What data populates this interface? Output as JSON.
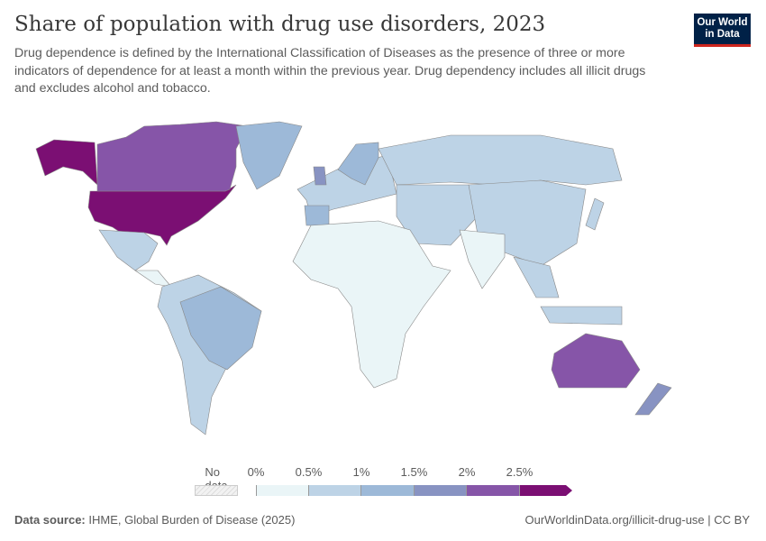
{
  "header": {
    "title": "Share of population with drug use disorders, 2023",
    "subtitle": "Drug dependence is defined by the International Classification of Diseases as the presence of three or more indicators of dependence for at least a month within the previous year. Drug dependency includes all illicit drugs and excludes alcohol and tobacco.",
    "logo": "Our World in Data"
  },
  "legend": {
    "no_data_label": "No data",
    "ticks": [
      "0%",
      "0.5%",
      "1%",
      "1.5%",
      "2%",
      "2.5%"
    ],
    "bin_colors": [
      "#eaf5f7",
      "#bdd3e6",
      "#9db9d8",
      "#8893c2",
      "#8655a8",
      "#7b0f73"
    ],
    "no_data_color": "#f2f2f2"
  },
  "chart_data": {
    "type": "choropleth",
    "title": "Share of population with drug use disorders, 2023",
    "unit": "%",
    "bins": [
      0,
      0.5,
      1,
      1.5,
      2,
      2.5
    ],
    "regions": [
      {
        "name": "United States",
        "value": 2.7
      },
      {
        "name": "Alaska (US)",
        "value": 2.7
      },
      {
        "name": "Canada",
        "value": 2.2
      },
      {
        "name": "Greenland",
        "value": 1.2
      },
      {
        "name": "Mexico",
        "value": 0.7
      },
      {
        "name": "Central America",
        "value": 0.4
      },
      {
        "name": "South America",
        "value": 0.8
      },
      {
        "name": "Brazil",
        "value": 1.2
      },
      {
        "name": "Europe",
        "value": 0.8
      },
      {
        "name": "United Kingdom",
        "value": 1.7
      },
      {
        "name": "Spain",
        "value": 1.2
      },
      {
        "name": "Scandinavia",
        "value": 1.2
      },
      {
        "name": "Russia",
        "value": 0.8
      },
      {
        "name": "Middle East & Central Asia",
        "value": 0.7
      },
      {
        "name": "China",
        "value": 0.7
      },
      {
        "name": "India",
        "value": 0.3
      },
      {
        "name": "Southeast Asia",
        "value": 0.7
      },
      {
        "name": "Indonesia",
        "value": 0.7
      },
      {
        "name": "Japan",
        "value": 0.7
      },
      {
        "name": "Africa",
        "value": 0.3
      },
      {
        "name": "Australia",
        "value": 2.2
      },
      {
        "name": "New Zealand",
        "value": 1.7
      }
    ]
  },
  "footer": {
    "source_label": "Data source:",
    "source": "IHME, Global Burden of Disease (2025)",
    "url": "OurWorldinData.org/illicit-drug-use | CC BY"
  }
}
